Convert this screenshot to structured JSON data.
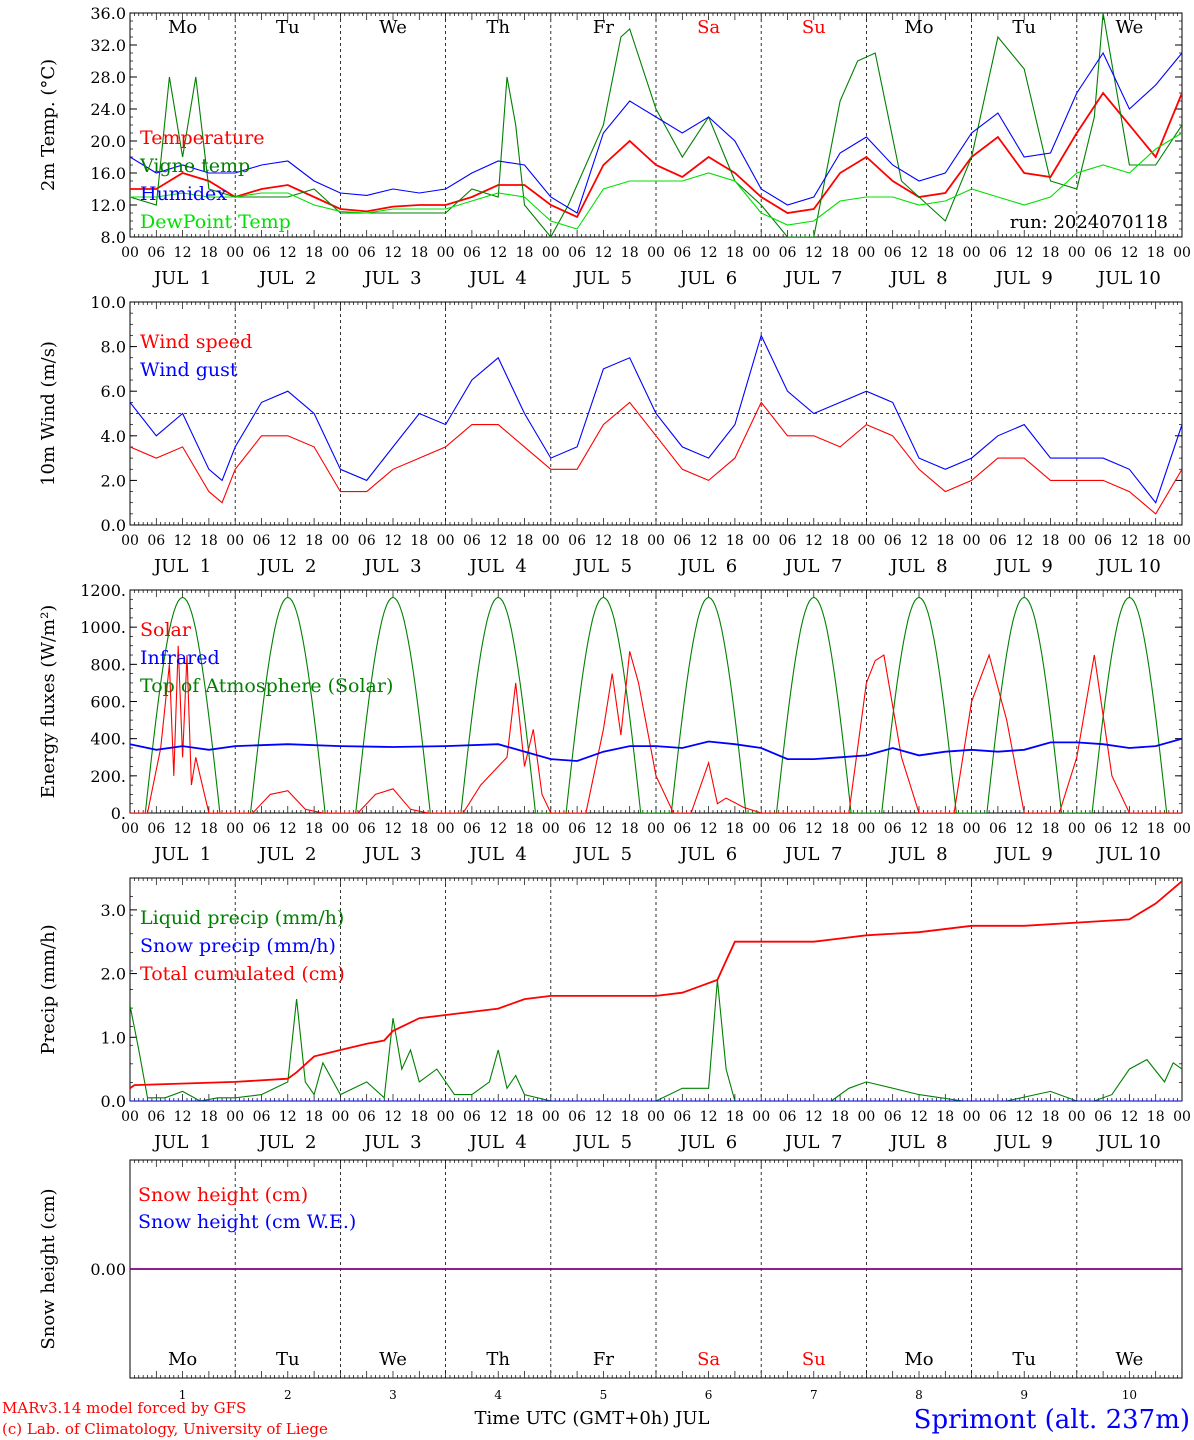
{
  "chart_data": [
    {
      "type": "line",
      "ylabel": "2m Temp. (°C)",
      "ylim": [
        8,
        36
      ],
      "ytick_labels": [
        "8.0",
        "12.0",
        "16.0",
        "20.0",
        "24.0",
        "28.0",
        "32.0",
        "36.0"
      ],
      "annotation": "run: 2024070118",
      "legend": [
        "Temperature",
        "Vigne temp",
        "Humidex",
        "DewPoint Temp"
      ],
      "series": [
        {
          "name": "Temperature",
          "color": "#ff0000",
          "x": [
            0,
            6,
            12,
            18,
            24,
            30,
            36,
            42,
            48,
            54,
            60,
            66,
            72,
            78,
            84,
            90,
            96,
            102,
            108,
            114,
            120,
            126,
            132,
            138,
            144,
            150,
            156,
            162,
            168,
            174,
            180,
            186,
            192,
            198,
            204,
            210,
            216,
            222,
            228,
            234,
            240
          ],
          "values": [
            14,
            14,
            16,
            15,
            13,
            14,
            14.5,
            13,
            11.5,
            11.2,
            11.8,
            12,
            12,
            13,
            14.5,
            14.5,
            12,
            10.5,
            17,
            20,
            17,
            15.5,
            18,
            16,
            13,
            11,
            11.5,
            16,
            18,
            15,
            13,
            13.5,
            18,
            20.5,
            16,
            15.5,
            21,
            26,
            22,
            18,
            26
          ]
        },
        {
          "name": "Vigne temp",
          "color": "#008000",
          "x": [
            0,
            6,
            9,
            12,
            15,
            18,
            24,
            36,
            42,
            48,
            60,
            72,
            78,
            84,
            86,
            88,
            90,
            96,
            100,
            108,
            112,
            114,
            120,
            126,
            132,
            138,
            144,
            150,
            156,
            162,
            166,
            170,
            176,
            180,
            186,
            192,
            198,
            204,
            210,
            216,
            220,
            222,
            228,
            234,
            240
          ],
          "values": [
            13,
            12,
            28,
            18,
            28,
            14,
            13,
            13,
            14,
            11,
            11,
            11,
            14,
            13,
            28,
            22,
            12,
            8,
            12,
            22,
            33,
            34,
            24,
            18,
            23,
            15,
            12,
            8,
            8,
            25,
            30,
            31,
            15,
            13,
            10,
            18,
            33,
            29,
            15,
            14,
            23,
            36,
            17,
            17,
            22
          ]
        },
        {
          "name": "Humidex",
          "color": "#0000ff",
          "x": [
            0,
            6,
            12,
            18,
            24,
            30,
            36,
            42,
            48,
            54,
            60,
            66,
            72,
            78,
            84,
            90,
            96,
            102,
            108,
            114,
            120,
            126,
            132,
            138,
            144,
            150,
            156,
            162,
            168,
            174,
            180,
            186,
            192,
            198,
            204,
            210,
            216,
            222,
            228,
            234,
            240
          ],
          "values": [
            18,
            16,
            17,
            16,
            16,
            17,
            17.5,
            15,
            13.5,
            13.2,
            14,
            13.5,
            14,
            16,
            17.5,
            17,
            13,
            11,
            21,
            25,
            23,
            21,
            23,
            20,
            14,
            12,
            13,
            18.5,
            20.5,
            17,
            15,
            16,
            21,
            23.5,
            18,
            18.5,
            26,
            31,
            24,
            27,
            31
          ]
        },
        {
          "name": "DewPoint Temp",
          "color": "#00e000",
          "x": [
            0,
            6,
            12,
            18,
            24,
            30,
            36,
            42,
            48,
            54,
            60,
            66,
            72,
            78,
            84,
            90,
            96,
            102,
            108,
            114,
            120,
            126,
            132,
            138,
            144,
            150,
            156,
            162,
            168,
            174,
            180,
            186,
            192,
            198,
            204,
            210,
            216,
            222,
            228,
            234,
            240
          ],
          "values": [
            13,
            13,
            13.5,
            13,
            13,
            13.5,
            13.5,
            12,
            11.2,
            11,
            11.5,
            11.5,
            11.5,
            12.5,
            13.5,
            13,
            10,
            9,
            14,
            15,
            15,
            15,
            16,
            15,
            11,
            9.5,
            10,
            12.5,
            13,
            13,
            12,
            12.5,
            14,
            13,
            12,
            13,
            16,
            17,
            16,
            19,
            21
          ]
        }
      ]
    },
    {
      "type": "line",
      "ylabel": "10m Wind (m/s)",
      "ylim": [
        0,
        10
      ],
      "ytick_labels": [
        "0.0",
        "2.0",
        "4.0",
        "6.0",
        "8.0",
        "10.0"
      ],
      "reference_line": 5,
      "legend": [
        "Wind speed",
        "Wind gust"
      ],
      "series": [
        {
          "name": "Wind speed",
          "color": "#ff0000",
          "x": [
            0,
            6,
            12,
            18,
            21,
            24,
            30,
            36,
            42,
            48,
            54,
            60,
            66,
            72,
            78,
            84,
            90,
            96,
            102,
            108,
            114,
            120,
            126,
            132,
            138,
            144,
            150,
            156,
            162,
            168,
            174,
            180,
            186,
            192,
            198,
            204,
            210,
            216,
            222,
            228,
            234,
            240
          ],
          "values": [
            3.5,
            3,
            3.5,
            1.5,
            1,
            2.5,
            4,
            4,
            3.5,
            1.5,
            1.5,
            2.5,
            3,
            3.5,
            4.5,
            4.5,
            3.5,
            2.5,
            2.5,
            4.5,
            5.5,
            4,
            2.5,
            2,
            3,
            5.5,
            4,
            4,
            3.5,
            4.5,
            4,
            2.5,
            1.5,
            2,
            3,
            3,
            2,
            2,
            2,
            1.5,
            0.5,
            2.5
          ]
        },
        {
          "name": "Wind gust",
          "color": "#0000ff",
          "x": [
            0,
            6,
            12,
            18,
            21,
            24,
            30,
            36,
            42,
            48,
            54,
            60,
            66,
            72,
            78,
            84,
            90,
            96,
            102,
            108,
            114,
            120,
            126,
            132,
            138,
            144,
            150,
            156,
            162,
            168,
            174,
            180,
            186,
            192,
            198,
            204,
            210,
            216,
            222,
            228,
            234,
            240
          ],
          "values": [
            5.5,
            4,
            5,
            2.5,
            2,
            3.5,
            5.5,
            6,
            5,
            2.5,
            2,
            3.5,
            5,
            4.5,
            6.5,
            7.5,
            5,
            3,
            3.5,
            7,
            7.5,
            5,
            3.5,
            3,
            4.5,
            8.5,
            6,
            5,
            5.5,
            6,
            5.5,
            3,
            2.5,
            3,
            4,
            4.5,
            3,
            3,
            3,
            2.5,
            1,
            4.5
          ]
        }
      ]
    },
    {
      "type": "line",
      "ylabel": "Energy fluxes (W/m²)",
      "ylim": [
        0,
        1200
      ],
      "ytick_labels": [
        "0.",
        "200.",
        "400.",
        "600.",
        "800.",
        "1000.",
        "1200."
      ],
      "legend": [
        "Solar",
        "Infrared",
        "Top of Atmosphere (Solar)"
      ],
      "toa_solar": {
        "name": "Top of Atmosphere (Solar)",
        "color": "#008000",
        "peak": 1160,
        "sunrise_hour": 3.5,
        "sunset_hour": 20.5
      },
      "series": [
        {
          "name": "Solar",
          "color": "#ff0000",
          "x": [
            0,
            4,
            7,
            9,
            10,
            11,
            12,
            13,
            14,
            15,
            16,
            18,
            20,
            24,
            28,
            32,
            36,
            40,
            44,
            48,
            52,
            56,
            60,
            64,
            68,
            72,
            76,
            80,
            84,
            86,
            88,
            90,
            92,
            94,
            96,
            100,
            104,
            108,
            110,
            112,
            114,
            116,
            120,
            124,
            128,
            132,
            134,
            136,
            140,
            144,
            148,
            152,
            156,
            160,
            164,
            168,
            170,
            172,
            176,
            180,
            184,
            188,
            192,
            196,
            200,
            204,
            208,
            212,
            216,
            220,
            224,
            228,
            232,
            236,
            240
          ],
          "values": [
            0,
            0,
            350,
            800,
            200,
            900,
            300,
            850,
            150,
            300,
            200,
            0,
            0,
            0,
            0,
            100,
            120,
            20,
            0,
            0,
            0,
            100,
            130,
            20,
            0,
            0,
            0,
            150,
            250,
            300,
            700,
            250,
            450,
            100,
            0,
            0,
            0,
            450,
            750,
            420,
            870,
            700,
            200,
            0,
            0,
            270,
            50,
            80,
            30,
            0,
            0,
            0,
            0,
            0,
            0,
            700,
            820,
            850,
            300,
            0,
            0,
            0,
            600,
            850,
            500,
            0,
            0,
            0,
            300,
            850,
            200,
            0,
            0,
            0,
            0
          ]
        },
        {
          "name": "Infrared",
          "color": "#0000ff",
          "x": [
            0,
            6,
            12,
            18,
            24,
            36,
            48,
            60,
            72,
            84,
            96,
            102,
            108,
            114,
            120,
            126,
            132,
            138,
            144,
            150,
            156,
            162,
            168,
            174,
            180,
            186,
            192,
            198,
            204,
            210,
            216,
            222,
            228,
            234,
            240
          ],
          "values": [
            370,
            340,
            360,
            340,
            360,
            370,
            360,
            355,
            360,
            370,
            290,
            280,
            330,
            360,
            360,
            350,
            385,
            370,
            350,
            290,
            290,
            300,
            310,
            350,
            310,
            330,
            340,
            330,
            340,
            380,
            380,
            370,
            350,
            360,
            400
          ]
        }
      ]
    },
    {
      "type": "line",
      "ylabel": "Precip (mm/h)",
      "ylim": [
        0,
        3.5
      ],
      "ytick_labels": [
        "0.0",
        "1.0",
        "2.0",
        "3.0"
      ],
      "legend": [
        "Liquid precip (mm/h)",
        "Snow precip (mm/h)",
        "Total cumulated (cm)"
      ],
      "series": [
        {
          "name": "Liquid precip (mm/h)",
          "color": "#008000",
          "x": [
            0,
            2,
            4,
            8,
            12,
            16,
            20,
            24,
            30,
            36,
            38,
            40,
            42,
            44,
            48,
            54,
            58,
            60,
            62,
            64,
            66,
            70,
            74,
            78,
            82,
            84,
            86,
            88,
            90,
            96,
            120,
            126,
            132,
            134,
            136,
            138,
            144,
            150,
            160,
            164,
            168,
            180,
            190,
            194,
            200,
            210,
            216,
            220,
            224,
            228,
            232,
            236,
            238,
            240
          ],
          "values": [
            1.5,
            0.8,
            0.05,
            0.05,
            0.15,
            0,
            0.05,
            0.05,
            0.1,
            0.3,
            1.6,
            0.3,
            0.1,
            0.6,
            0.1,
            0.3,
            0.05,
            1.3,
            0.5,
            0.8,
            0.3,
            0.5,
            0.1,
            0.1,
            0.3,
            0.8,
            0.2,
            0.4,
            0.1,
            0,
            0,
            0.2,
            0.2,
            1.9,
            0.5,
            0,
            0,
            0,
            0,
            0.2,
            0.3,
            0.1,
            0,
            0,
            0,
            0.15,
            0,
            0,
            0.1,
            0.5,
            0.65,
            0.3,
            0.6,
            0.5
          ]
        },
        {
          "name": "Snow precip (mm/h)",
          "color": "#0000ff",
          "x": [
            0,
            240
          ],
          "values": [
            0,
            0
          ]
        },
        {
          "name": "Total cumulated (cm)",
          "color": "#ff0000",
          "x": [
            0,
            1,
            24,
            36,
            38,
            42,
            48,
            54,
            58,
            60,
            66,
            72,
            84,
            90,
            96,
            120,
            126,
            130,
            134,
            136,
            138,
            144,
            156,
            162,
            168,
            180,
            192,
            204,
            216,
            228,
            234,
            240
          ],
          "values": [
            0.2,
            0.25,
            0.3,
            0.35,
            0.45,
            0.7,
            0.8,
            0.9,
            0.95,
            1.1,
            1.3,
            1.35,
            1.45,
            1.6,
            1.65,
            1.65,
            1.7,
            1.8,
            1.9,
            2.2,
            2.5,
            2.5,
            2.5,
            2.55,
            2.6,
            2.65,
            2.75,
            2.75,
            2.8,
            2.85,
            3.1,
            3.45
          ]
        }
      ]
    },
    {
      "type": "line",
      "ylabel": "Snow height (cm)",
      "ylim": [
        -1,
        1
      ],
      "ytick_labels": [
        "0.00"
      ],
      "legend": [
        "Snow height (cm)",
        "Snow height (cm W.E.)"
      ],
      "series": [
        {
          "name": "Snow height (cm)",
          "color": "#ff0000",
          "x": [
            0,
            240
          ],
          "values": [
            0,
            0
          ]
        },
        {
          "name": "Snow height (cm W.E.)",
          "color": "#0000ff",
          "x": [
            0,
            240
          ],
          "values": [
            0,
            0
          ]
        }
      ]
    }
  ],
  "days": {
    "weekdays": [
      "Mo",
      "Tu",
      "We",
      "Th",
      "Fr",
      "Sa",
      "Su",
      "Mo",
      "Tu",
      "We"
    ],
    "weekend_color": "#ff0000",
    "weekend_index": [
      5,
      6
    ],
    "date_labels": [
      "JUL  1",
      "JUL  2",
      "JUL  3",
      "JUL  4",
      "JUL  5",
      "JUL  6",
      "JUL  7",
      "JUL  8",
      "JUL  9",
      "JUL 10"
    ],
    "hour_labels": [
      "00",
      "06",
      "12",
      "18"
    ],
    "day_numbers": [
      "1",
      "2",
      "3",
      "4",
      "5",
      "6",
      "7",
      "8",
      "9",
      "10"
    ]
  },
  "xlabel": "Time UTC (GMT+0h) JUL",
  "footer": {
    "credit_line1": "MARv3.14 model forced by GFS",
    "credit_line2": "(c) Lab. of Climatology, University of Liege",
    "location": "Sprimont (alt. 237m)"
  },
  "colors": {
    "red": "#ff0000",
    "green": "#008000",
    "blue": "#0000ff",
    "lightgreen": "#00e000",
    "purple": "#800080"
  }
}
